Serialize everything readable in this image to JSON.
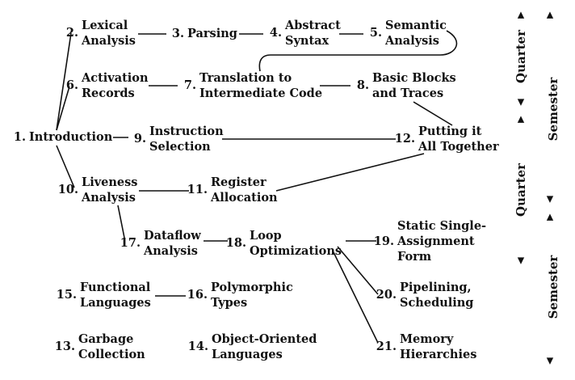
{
  "nodes": [
    {
      "id": "n1",
      "num": "1.",
      "lines": [
        "Introduction"
      ]
    },
    {
      "id": "n2",
      "num": "2.",
      "lines": [
        "Lexical",
        "Analysis"
      ]
    },
    {
      "id": "n3",
      "num": "3.",
      "lines": [
        "Parsing"
      ]
    },
    {
      "id": "n4",
      "num": "4.",
      "lines": [
        "Abstract",
        "Syntax"
      ]
    },
    {
      "id": "n5",
      "num": "5.",
      "lines": [
        "Semantic",
        "Analysis"
      ]
    },
    {
      "id": "n6",
      "num": "6.",
      "lines": [
        "Activation",
        "Records"
      ]
    },
    {
      "id": "n7",
      "num": "7.",
      "lines": [
        "Translation to",
        "Intermediate Code"
      ]
    },
    {
      "id": "n8",
      "num": "8.",
      "lines": [
        "Basic Blocks",
        "and Traces"
      ]
    },
    {
      "id": "n9",
      "num": "9.",
      "lines": [
        "Instruction",
        "Selection"
      ]
    },
    {
      "id": "n10",
      "num": "10.",
      "lines": [
        "Liveness",
        "Analysis"
      ]
    },
    {
      "id": "n11",
      "num": "11.",
      "lines": [
        "Register",
        "Allocation"
      ]
    },
    {
      "id": "n12",
      "num": "12.",
      "lines": [
        "Putting it",
        "All Together"
      ]
    },
    {
      "id": "n13",
      "num": "13.",
      "lines": [
        "Garbage",
        "Collection"
      ]
    },
    {
      "id": "n14",
      "num": "14.",
      "lines": [
        "Object-Oriented",
        "Languages"
      ]
    },
    {
      "id": "n15",
      "num": "15.",
      "lines": [
        "Functional",
        "Languages"
      ]
    },
    {
      "id": "n16",
      "num": "16.",
      "lines": [
        "Polymorphic",
        "Types"
      ]
    },
    {
      "id": "n17",
      "num": "17.",
      "lines": [
        "Dataflow",
        "Analysis"
      ]
    },
    {
      "id": "n18",
      "num": "18.",
      "lines": [
        "Loop",
        "Optimizations"
      ]
    },
    {
      "id": "n19",
      "num": "19.",
      "lines": [
        "Static Single-",
        "Assignment",
        "Form"
      ]
    },
    {
      "id": "n20",
      "num": "20.",
      "lines": [
        "Pipelining,",
        "Scheduling"
      ]
    },
    {
      "id": "n21",
      "num": "21.",
      "lines": [
        "Memory",
        "Hierarchies"
      ]
    }
  ],
  "edges": [
    [
      "n1",
      "n2"
    ],
    [
      "n1",
      "n6"
    ],
    [
      "n1",
      "n9"
    ],
    [
      "n1",
      "n10"
    ],
    [
      "n2",
      "n3"
    ],
    [
      "n3",
      "n4"
    ],
    [
      "n4",
      "n5"
    ],
    [
      "n5",
      "n7"
    ],
    [
      "n6",
      "n7"
    ],
    [
      "n7",
      "n8"
    ],
    [
      "n8",
      "n12"
    ],
    [
      "n9",
      "n12"
    ],
    [
      "n10",
      "n11"
    ],
    [
      "n11",
      "n12"
    ],
    [
      "n10",
      "n17"
    ],
    [
      "n17",
      "n18"
    ],
    [
      "n18",
      "n19"
    ],
    [
      "n18",
      "n20"
    ],
    [
      "n18",
      "n21"
    ],
    [
      "n15",
      "n16"
    ]
  ],
  "side_labels": {
    "quarter_1": "Quarter",
    "semester_1": "Semester",
    "quarter_2": "Quarter",
    "semester_2": "Semester"
  },
  "arrow_glyphs": {
    "up": "▲",
    "down": "▼"
  }
}
